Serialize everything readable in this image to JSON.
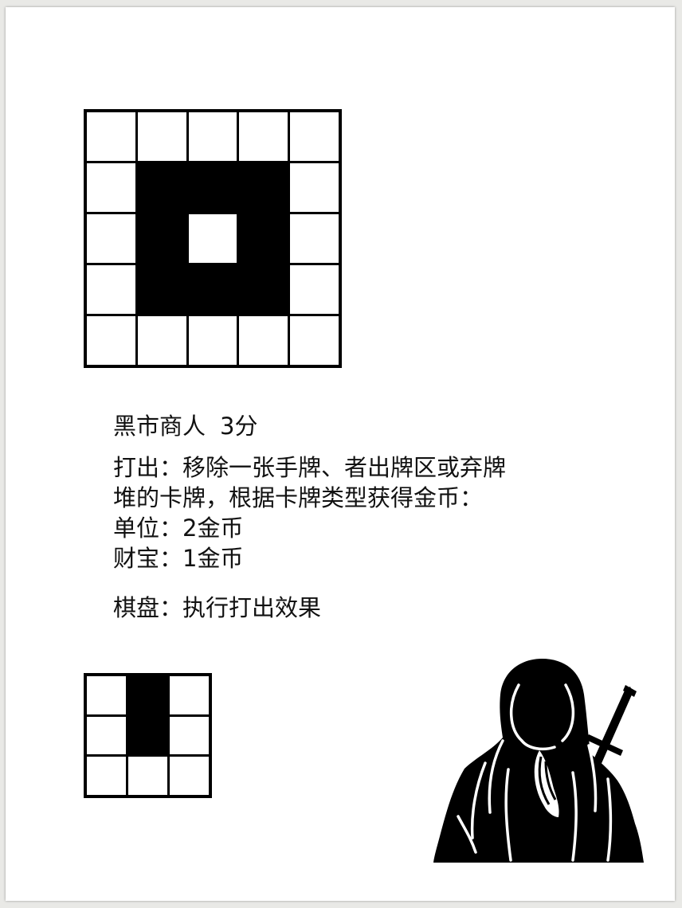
{
  "card": {
    "name": "黑市商人",
    "score": "3分",
    "play_lines": [
      "打出：移除一张手牌、者出牌区或弃牌",
      "堆的卡牌，根据卡牌类型获得金币："
    ],
    "rewards": [
      "单位：2金币",
      "财宝：1金币"
    ],
    "board_effect": "棋盘：执行打出效果"
  },
  "pattern_grid": {
    "rows": 5,
    "cols": 5,
    "filled": [
      [
        0,
        0,
        0,
        0,
        0
      ],
      [
        0,
        1,
        1,
        1,
        0
      ],
      [
        0,
        1,
        0,
        1,
        0
      ],
      [
        0,
        1,
        1,
        1,
        0
      ],
      [
        0,
        0,
        0,
        0,
        0
      ]
    ]
  },
  "placement_grid": {
    "rows": 3,
    "cols": 3,
    "filled": [
      [
        0,
        1,
        0
      ],
      [
        0,
        1,
        0
      ],
      [
        0,
        0,
        0
      ]
    ]
  },
  "illustration": {
    "icon": "hooded-monk-with-cross-icon"
  },
  "colors": {
    "ink": "#000000",
    "paper": "#ffffff",
    "background": "#e9e9e6"
  }
}
